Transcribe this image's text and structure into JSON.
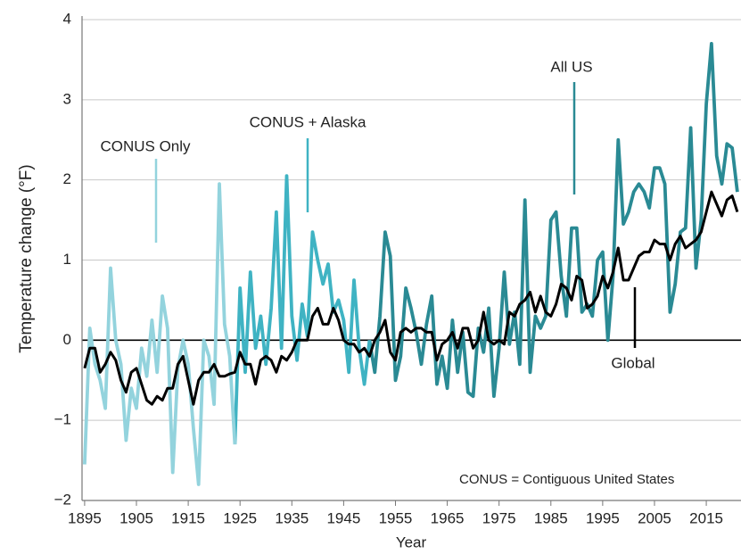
{
  "chart_data": {
    "type": "line",
    "xlabel": "Year",
    "ylabel": "Temperature change (°F)",
    "note": "CONUS = Contiguous United States",
    "xlim": [
      1894.5,
      2021.7
    ],
    "ylim": [
      -2,
      4
    ],
    "xticks": [
      1895,
      1905,
      1915,
      1925,
      1935,
      1945,
      1955,
      1965,
      1975,
      1985,
      1995,
      2005,
      2015
    ],
    "yticks": [
      {
        "value": -2,
        "label": "−2"
      },
      {
        "value": -1,
        "label": "−1"
      },
      0,
      1,
      2,
      3,
      4
    ],
    "grid": true,
    "series": [
      {
        "name": "CONUS Only",
        "color": "#93d3dd",
        "x": [
          1895,
          1896,
          1897,
          1898,
          1899,
          1900,
          1901,
          1902,
          1903,
          1904,
          1905,
          1906,
          1907,
          1908,
          1909,
          1910,
          1911,
          1912,
          1913,
          1914,
          1915,
          1916,
          1917,
          1918,
          1919,
          1920,
          1921,
          1922,
          1923,
          1924
        ],
        "values": [
          -1.55,
          0.15,
          -0.3,
          -0.5,
          -0.85,
          0.9,
          0,
          -0.3,
          -1.25,
          -0.6,
          -0.85,
          -0.1,
          -0.45,
          0.25,
          -0.4,
          0.55,
          0.15,
          -1.65,
          -0.35,
          0,
          -0.3,
          -1.1,
          -1.8,
          0,
          -0.2,
          -0.8,
          1.95,
          0.2,
          -0.2,
          -1.3
        ]
      },
      {
        "name": "CONUS + Alaska",
        "color": "#3fb3c3",
        "x": [
          1924,
          1925,
          1926,
          1927,
          1928,
          1929,
          1930,
          1931,
          1932,
          1933,
          1934,
          1935,
          1936,
          1937,
          1938,
          1939,
          1940,
          1941,
          1942,
          1943,
          1944,
          1945,
          1946,
          1947,
          1948,
          1949,
          1950
        ],
        "values": [
          -1.3,
          0.65,
          -0.4,
          0.85,
          -0.1,
          0.3,
          -0.3,
          0.4,
          1.6,
          -0.1,
          2.05,
          0.3,
          -0.25,
          0.45,
          0.05,
          1.35,
          1.0,
          0.7,
          0.95,
          0.35,
          0.5,
          0.25,
          -0.4,
          0.75,
          -0.1,
          -0.55,
          0
        ]
      },
      {
        "name": "All US",
        "color": "#2a8a94",
        "x": [
          1950,
          1951,
          1952,
          1953,
          1954,
          1955,
          1956,
          1957,
          1958,
          1959,
          1960,
          1961,
          1962,
          1963,
          1964,
          1965,
          1966,
          1967,
          1968,
          1969,
          1970,
          1971,
          1972,
          1973,
          1974,
          1975,
          1976,
          1977,
          1978,
          1979,
          1980,
          1981,
          1982,
          1983,
          1984,
          1985,
          1986,
          1987,
          1988,
          1989,
          1990,
          1991,
          1992,
          1993,
          1994,
          1995,
          1996,
          1997,
          1998,
          1999,
          2000,
          2001,
          2002,
          2003,
          2004,
          2005,
          2006,
          2007,
          2008,
          2009,
          2010,
          2011,
          2012,
          2013,
          2014,
          2015,
          2016,
          2017,
          2018,
          2019,
          2020,
          2021
        ],
        "values": [
          0,
          -0.4,
          0.3,
          1.35,
          1.05,
          -0.5,
          -0.2,
          0.65,
          0.4,
          0.1,
          -0.3,
          0.2,
          0.55,
          -0.55,
          -0.2,
          -0.6,
          0.25,
          -0.4,
          0.1,
          -0.65,
          -0.7,
          0.15,
          -0.15,
          0.4,
          -0.7,
          -0.1,
          0.85,
          -0.05,
          0.35,
          -0.3,
          1.75,
          -0.4,
          0.3,
          0.15,
          0.3,
          1.5,
          1.6,
          0.8,
          0.3,
          1.4,
          1.4,
          0.35,
          0.45,
          0.3,
          1.0,
          1.1,
          0,
          0.8,
          2.5,
          1.45,
          1.6,
          1.85,
          1.95,
          1.85,
          1.65,
          2.15,
          2.15,
          1.95,
          0.35,
          0.7,
          1.35,
          1.4,
          2.65,
          0.9,
          1.5,
          2.95,
          3.7,
          2.3,
          1.95,
          2.45,
          2.4,
          1.85
        ]
      },
      {
        "name": "Global",
        "color": "#000000",
        "x": [
          1895,
          1896,
          1897,
          1898,
          1899,
          1900,
          1901,
          1902,
          1903,
          1904,
          1905,
          1906,
          1907,
          1908,
          1909,
          1910,
          1911,
          1912,
          1913,
          1914,
          1915,
          1916,
          1917,
          1918,
          1919,
          1920,
          1921,
          1922,
          1923,
          1924,
          1925,
          1926,
          1927,
          1928,
          1929,
          1930,
          1931,
          1932,
          1933,
          1934,
          1935,
          1936,
          1937,
          1938,
          1939,
          1940,
          1941,
          1942,
          1943,
          1944,
          1945,
          1946,
          1947,
          1948,
          1949,
          1950,
          1951,
          1952,
          1953,
          1954,
          1955,
          1956,
          1957,
          1958,
          1959,
          1960,
          1961,
          1962,
          1963,
          1964,
          1965,
          1966,
          1967,
          1968,
          1969,
          1970,
          1971,
          1972,
          1973,
          1974,
          1975,
          1976,
          1977,
          1978,
          1979,
          1980,
          1981,
          1982,
          1983,
          1984,
          1985,
          1986,
          1987,
          1988,
          1989,
          1990,
          1991,
          1992,
          1993,
          1994,
          1995,
          1996,
          1997,
          1998,
          1999,
          2000,
          2001,
          2002,
          2003,
          2004,
          2005,
          2006,
          2007,
          2008,
          2009,
          2010,
          2011,
          2012,
          2013,
          2014,
          2015,
          2016,
          2017,
          2018,
          2019,
          2020,
          2021
        ],
        "values": [
          -0.35,
          -0.1,
          -0.1,
          -0.4,
          -0.3,
          -0.15,
          -0.25,
          -0.5,
          -0.65,
          -0.4,
          -0.35,
          -0.55,
          -0.75,
          -0.8,
          -0.7,
          -0.75,
          -0.6,
          -0.6,
          -0.3,
          -0.2,
          -0.5,
          -0.8,
          -0.5,
          -0.4,
          -0.4,
          -0.3,
          -0.45,
          -0.45,
          -0.42,
          -0.4,
          -0.15,
          -0.3,
          -0.3,
          -0.55,
          -0.25,
          -0.2,
          -0.25,
          -0.4,
          -0.2,
          -0.25,
          -0.15,
          0,
          0,
          0,
          0.3,
          0.4,
          0.2,
          0.2,
          0.4,
          0.25,
          0,
          -0.05,
          -0.05,
          -0.15,
          -0.1,
          -0.2,
          0,
          0.1,
          0.25,
          -0.15,
          -0.25,
          0.1,
          0.15,
          0.1,
          0.15,
          0.15,
          0.1,
          0.1,
          -0.25,
          -0.05,
          0,
          0.1,
          -0.1,
          0.15,
          0.15,
          -0.1,
          0,
          0.35,
          0,
          -0.05,
          0,
          -0.05,
          0.35,
          0.3,
          0.45,
          0.5,
          0.6,
          0.35,
          0.55,
          0.35,
          0.3,
          0.45,
          0.7,
          0.65,
          0.5,
          0.8,
          0.75,
          0.4,
          0.45,
          0.55,
          0.8,
          0.65,
          0.85,
          1.15,
          0.75,
          0.75,
          0.9,
          1.05,
          1.1,
          1.1,
          1.25,
          1.2,
          1.2,
          1.0,
          1.2,
          1.3,
          1.15,
          1.2,
          1.25,
          1.35,
          1.6,
          1.85,
          1.7,
          1.55,
          1.75,
          1.8,
          1.6
        ]
      }
    ]
  }
}
